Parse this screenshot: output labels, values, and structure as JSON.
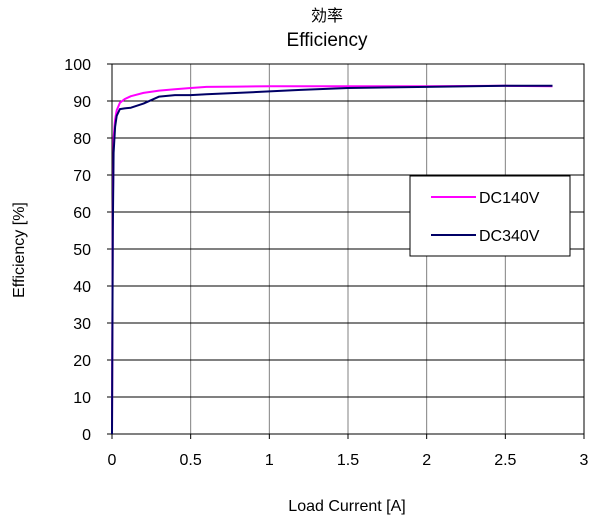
{
  "chart_data": {
    "type": "line",
    "title_ja": "効率",
    "title": "Efficiency",
    "xlabel": "Load Current [A]",
    "ylabel": "Efficiency [%]",
    "xlim": [
      0,
      3
    ],
    "ylim": [
      0,
      100
    ],
    "x_ticks": [
      0,
      0.5,
      1,
      1.5,
      2,
      2.5,
      3
    ],
    "x_tick_labels": [
      "0",
      "0.5",
      "1",
      "1.5",
      "2",
      "2.5",
      "3"
    ],
    "y_ticks": [
      0,
      10,
      20,
      30,
      40,
      50,
      60,
      70,
      80,
      90,
      100
    ],
    "y_tick_labels": [
      "0",
      "10",
      "20",
      "30",
      "40",
      "50",
      "60",
      "70",
      "80",
      "90",
      "100"
    ],
    "grid": true,
    "legend_position": "right",
    "series": [
      {
        "name": "DC140V",
        "color": "#ff00ff",
        "x": [
          0,
          0.005,
          0.01,
          0.02,
          0.03,
          0.05,
          0.08,
          0.12,
          0.2,
          0.3,
          0.4,
          0.5,
          0.6,
          0.8,
          1.0,
          1.2,
          1.5,
          2.0,
          2.5,
          2.8
        ],
        "y": [
          0,
          60,
          80,
          85,
          87.5,
          89.5,
          90.5,
          91.3,
          92.2,
          92.8,
          93.2,
          93.5,
          93.8,
          93.9,
          94.0,
          94.0,
          94.0,
          94.0,
          94.1,
          94.0
        ]
      },
      {
        "name": "DC340V",
        "color": "#000066",
        "x": [
          0,
          0.005,
          0.01,
          0.02,
          0.03,
          0.05,
          0.08,
          0.12,
          0.2,
          0.3,
          0.4,
          0.5,
          0.6,
          0.8,
          1.0,
          1.2,
          1.5,
          2.0,
          2.5,
          2.8
        ],
        "y": [
          0,
          55,
          76,
          83,
          86,
          87.8,
          88.0,
          88.2,
          89.3,
          91.2,
          91.6,
          91.6,
          91.8,
          92.2,
          92.6,
          93.0,
          93.5,
          93.8,
          94.1,
          94.1
        ]
      }
    ]
  }
}
